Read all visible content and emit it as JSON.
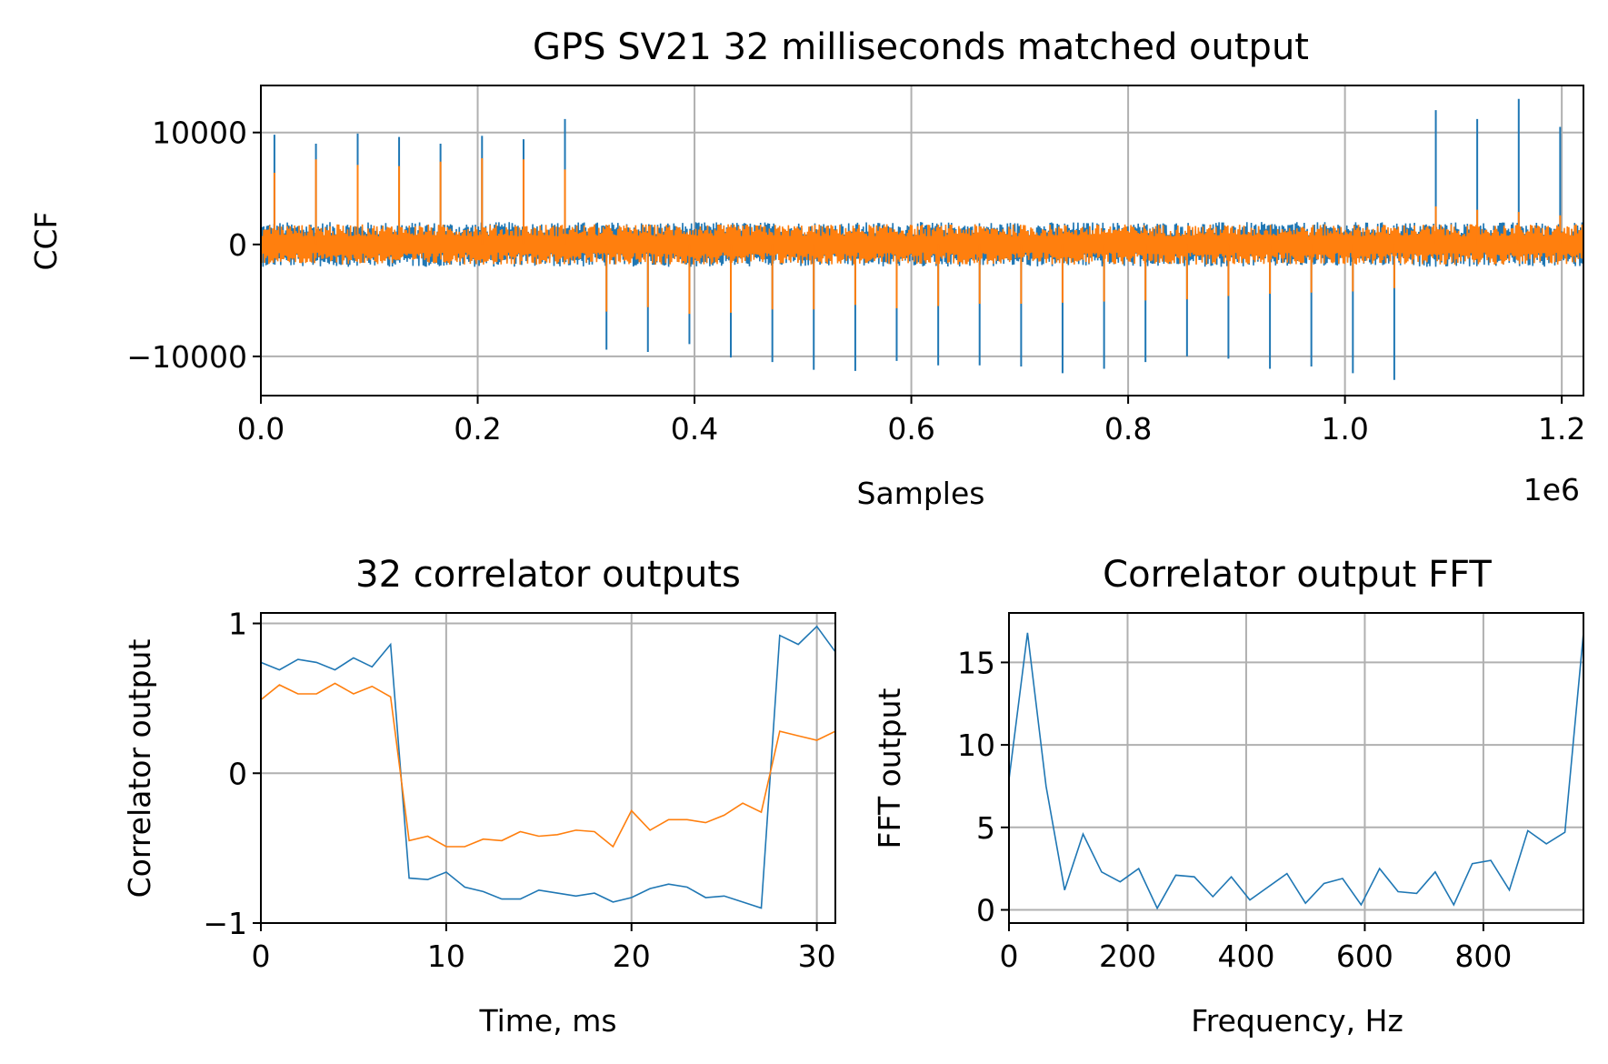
{
  "chart_data": [
    {
      "type": "line",
      "title": "GPS SV21 32 milliseconds matched output",
      "xlabel": "Samples",
      "ylabel": "CCF",
      "x_offset_text": "1e6",
      "xlim": [
        0,
        1.22
      ],
      "ylim": [
        -13500,
        14200
      ],
      "xticks": [
        0.0,
        0.2,
        0.4,
        0.6,
        0.8,
        1.0,
        1.2
      ],
      "xtick_labels": [
        "0.0",
        "0.2",
        "0.4",
        "0.6",
        "0.8",
        "1.0",
        "1.2"
      ],
      "yticks": [
        10000,
        0,
        -10000
      ],
      "ytick_labels": [
        "10000",
        "0",
        "−10000"
      ],
      "grid": true,
      "noise_amplitude": 2000,
      "series": [
        {
          "color": "#1f77b4",
          "peaks": [
            [
              0.0125,
              9800
            ],
            [
              0.0508,
              9000
            ],
            [
              0.0893,
              9900
            ],
            [
              0.1275,
              9600
            ],
            [
              0.1657,
              9000
            ],
            [
              0.204,
              9700
            ],
            [
              0.2423,
              9400
            ],
            [
              0.2805,
              11200
            ],
            [
              0.3188,
              -9400
            ],
            [
              0.357,
              -9600
            ],
            [
              0.3953,
              -8900
            ],
            [
              0.4335,
              -10100
            ],
            [
              0.4718,
              -10500
            ],
            [
              0.51,
              -11200
            ],
            [
              0.5483,
              -11300
            ],
            [
              0.5865,
              -10400
            ],
            [
              0.6248,
              -10800
            ],
            [
              0.663,
              -10800
            ],
            [
              0.7013,
              -10900
            ],
            [
              0.7395,
              -11500
            ],
            [
              0.7778,
              -11100
            ],
            [
              0.816,
              -10500
            ],
            [
              0.8543,
              -10000
            ],
            [
              0.8925,
              -10200
            ],
            [
              0.9308,
              -11100
            ],
            [
              0.969,
              -10900
            ],
            [
              1.0073,
              -11500
            ],
            [
              1.0455,
              -12100
            ],
            [
              1.0838,
              12000
            ],
            [
              1.122,
              11200
            ],
            [
              1.1603,
              13000
            ],
            [
              1.1985,
              10500
            ]
          ]
        },
        {
          "color": "#ff7f0e",
          "peaks": [
            [
              0.0125,
              6400
            ],
            [
              0.0508,
              7600
            ],
            [
              0.0893,
              7100
            ],
            [
              0.1275,
              7000
            ],
            [
              0.1657,
              7400
            ],
            [
              0.204,
              7700
            ],
            [
              0.2423,
              7600
            ],
            [
              0.2805,
              6700
            ],
            [
              0.3188,
              -6000
            ],
            [
              0.357,
              -5600
            ],
            [
              0.3953,
              -6200
            ],
            [
              0.4335,
              -6100
            ],
            [
              0.4718,
              -5800
            ],
            [
              0.51,
              -5800
            ],
            [
              0.5483,
              -5400
            ],
            [
              0.5865,
              -5700
            ],
            [
              0.6248,
              -5500
            ],
            [
              0.663,
              -5300
            ],
            [
              0.7013,
              -5300
            ],
            [
              0.7395,
              -5200
            ],
            [
              0.7778,
              -5100
            ],
            [
              0.816,
              -5000
            ],
            [
              0.8543,
              -4900
            ],
            [
              0.8925,
              -4600
            ],
            [
              0.9308,
              -4400
            ],
            [
              0.969,
              -4300
            ],
            [
              1.0073,
              -4200
            ],
            [
              1.0455,
              -3900
            ],
            [
              1.0838,
              3400
            ],
            [
              1.122,
              3100
            ],
            [
              1.1603,
              2900
            ],
            [
              1.1985,
              2600
            ]
          ]
        }
      ]
    },
    {
      "type": "line",
      "title": "32 correlator outputs",
      "xlabel": "Time, ms",
      "ylabel": "Correlator output",
      "xlim": [
        0,
        31
      ],
      "ylim": [
        -1.0,
        1.07
      ],
      "xticks": [
        0,
        10,
        20,
        30
      ],
      "xtick_labels": [
        "0",
        "10",
        "20",
        "30"
      ],
      "yticks": [
        1,
        0,
        -1
      ],
      "ytick_labels": [
        "1",
        "0",
        "−1"
      ],
      "grid": true,
      "series": [
        {
          "color": "#1f77b4",
          "x": [
            0,
            1,
            2,
            3,
            4,
            5,
            6,
            7,
            8,
            9,
            10,
            11,
            12,
            13,
            14,
            15,
            16,
            17,
            18,
            19,
            20,
            21,
            22,
            23,
            24,
            25,
            26,
            27,
            28,
            29,
            30,
            31
          ],
          "values": [
            0.74,
            0.69,
            0.76,
            0.74,
            0.69,
            0.77,
            0.71,
            0.86,
            -0.7,
            -0.71,
            -0.66,
            -0.76,
            -0.79,
            -0.84,
            -0.84,
            -0.78,
            -0.8,
            -0.82,
            -0.8,
            -0.86,
            -0.83,
            -0.77,
            -0.74,
            -0.76,
            -0.83,
            -0.82,
            -0.86,
            -0.9,
            0.92,
            0.86,
            0.98,
            0.81
          ]
        },
        {
          "color": "#ff7f0e",
          "x": [
            0,
            1,
            2,
            3,
            4,
            5,
            6,
            7,
            8,
            9,
            10,
            11,
            12,
            13,
            14,
            15,
            16,
            17,
            18,
            19,
            20,
            21,
            22,
            23,
            24,
            25,
            26,
            27,
            28,
            29,
            30,
            31
          ],
          "values": [
            0.49,
            0.59,
            0.53,
            0.53,
            0.6,
            0.53,
            0.58,
            0.51,
            -0.45,
            -0.42,
            -0.49,
            -0.49,
            -0.44,
            -0.45,
            -0.39,
            -0.42,
            -0.41,
            -0.38,
            -0.39,
            -0.49,
            -0.25,
            -0.38,
            -0.31,
            -0.31,
            -0.33,
            -0.28,
            -0.2,
            -0.26,
            0.28,
            0.25,
            0.22,
            0.28
          ]
        }
      ]
    },
    {
      "type": "line",
      "title": "Correlator output FFT",
      "xlabel": "Frequency, Hz",
      "ylabel": "FFT output",
      "xlim": [
        0,
        968.75
      ],
      "ylim": [
        -0.8,
        18.0
      ],
      "xticks": [
        0,
        200,
        400,
        600,
        800
      ],
      "xtick_labels": [
        "0",
        "200",
        "400",
        "600",
        "800"
      ],
      "yticks": [
        0,
        5,
        10,
        15
      ],
      "ytick_labels": [
        "0",
        "5",
        "10",
        "15"
      ],
      "grid": true,
      "series": [
        {
          "color": "#1f77b4",
          "x": [
            0,
            31.25,
            62.5,
            93.75,
            125,
            156.25,
            187.5,
            218.75,
            250,
            281.25,
            312.5,
            343.75,
            375,
            406.25,
            437.5,
            468.75,
            500,
            531.25,
            562.5,
            593.75,
            625,
            656.25,
            687.5,
            718.75,
            750,
            781.25,
            812.5,
            843.75,
            875,
            906.25,
            937.5,
            968.75
          ],
          "values": [
            7.9,
            16.8,
            7.5,
            1.2,
            4.6,
            2.3,
            1.7,
            2.5,
            0.1,
            2.1,
            2.0,
            0.8,
            2.0,
            0.6,
            1.4,
            2.2,
            0.4,
            1.6,
            1.9,
            0.3,
            2.5,
            1.1,
            1.0,
            2.3,
            0.3,
            2.8,
            3.0,
            1.2,
            4.8,
            4.0,
            4.7,
            16.8
          ]
        }
      ]
    }
  ]
}
